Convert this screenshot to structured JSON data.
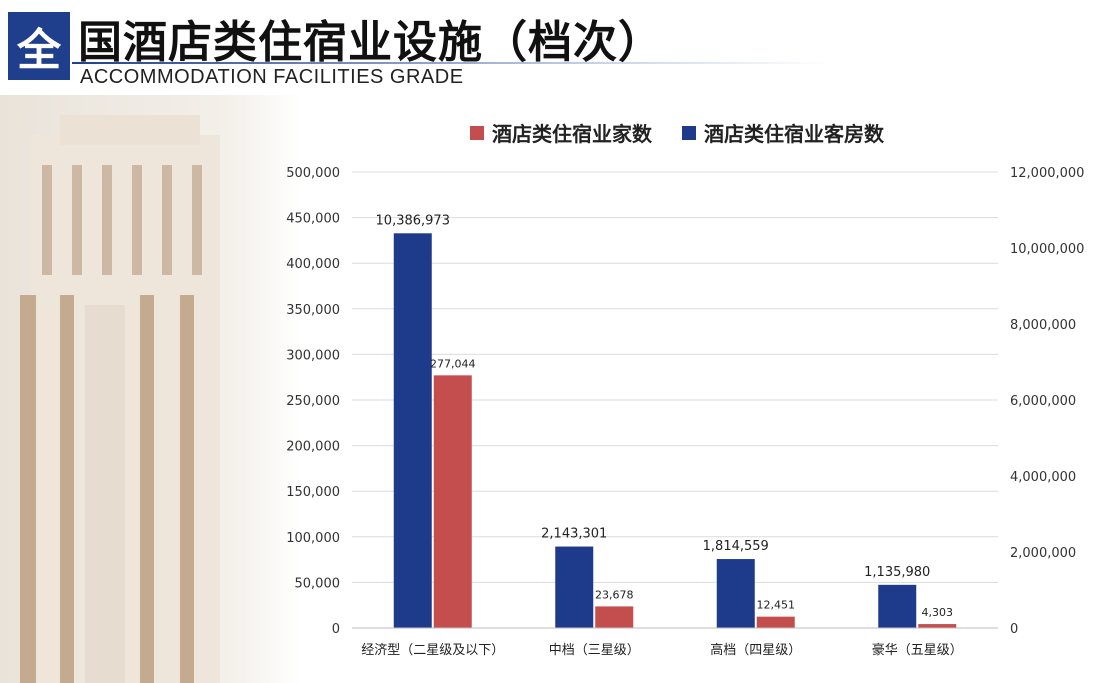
{
  "header": {
    "badge": "全",
    "title": "国酒店类住宿业设施（档次）",
    "subtitle": "ACCOMMODATION FACILITIES GRADE"
  },
  "colors": {
    "red": "#c44e4e",
    "blue": "#1e3a8a",
    "brand": "#1f3f8c"
  },
  "chart_data": {
    "type": "bar",
    "categories": [
      "经济型（二星级及以下）",
      "中档（三星级）",
      "高档（四星级）",
      "豪华（五星级）"
    ],
    "series": [
      {
        "name": "酒店类住宿业客房数",
        "axis": "right",
        "color": "#1e3a8a",
        "values": [
          10386973,
          2143301,
          1814559,
          1135980
        ],
        "labels": [
          "10,386,973",
          "2,143,301",
          "1,814,559",
          "1,135,980"
        ]
      },
      {
        "name": "酒店类住宿业家数",
        "axis": "left",
        "color": "#c44e4e",
        "values": [
          277044,
          23678,
          12451,
          4303
        ],
        "labels": [
          "277,044",
          "23,678",
          "12,451",
          "4,303"
        ]
      }
    ],
    "legend_order": [
      "酒店类住宿业家数",
      "酒店类住宿业客房数"
    ],
    "y_left": {
      "min": 0,
      "max": 500000,
      "ticks": [
        "0",
        "50,000",
        "100,000",
        "150,000",
        "200,000",
        "250,000",
        "300,000",
        "350,000",
        "400,000",
        "450,000",
        "500,000"
      ]
    },
    "y_right": {
      "min": 0,
      "max": 12000000,
      "ticks": [
        "0",
        "2,000,000",
        "4,000,000",
        "6,000,000",
        "8,000,000",
        "10,000,000",
        "12,000,000"
      ]
    },
    "grid": true,
    "legend_position": "top"
  }
}
